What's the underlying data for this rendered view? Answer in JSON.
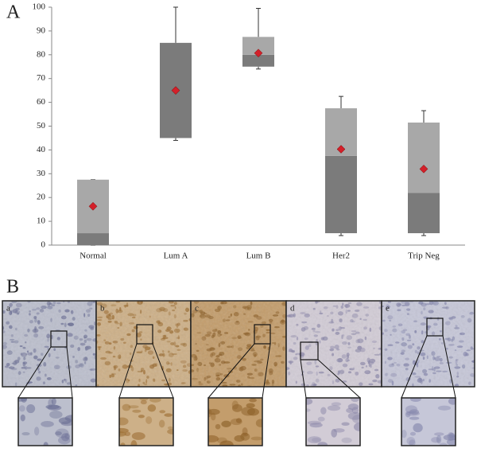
{
  "chart_data": {
    "type": "box",
    "panel_label": "A",
    "categories": [
      "Normal",
      "Lum A",
      "Lum B",
      "Her2",
      "Trip Neg"
    ],
    "min": [
      0,
      44,
      74,
      4,
      4
    ],
    "q1": [
      0,
      45,
      75,
      5,
      5
    ],
    "median": [
      5,
      85,
      80,
      37.5,
      22
    ],
    "q3": [
      27.5,
      85,
      87.5,
      57.5,
      51.5
    ],
    "max": [
      27.5,
      100,
      99.5,
      62.5,
      56.5
    ],
    "mean": [
      16.3,
      65,
      80.7,
      40.3,
      32
    ],
    "lower_color": "#7b7b7b",
    "upper_color": "#a8a8a8",
    "mean_color": "#d3202a",
    "ylim": [
      0,
      100
    ],
    "yticks": [
      0,
      10,
      20,
      30,
      40,
      50,
      60,
      70,
      80,
      90,
      100
    ]
  },
  "panel_b": {
    "label": "B",
    "images": [
      "a",
      "b",
      "c",
      "d",
      "e"
    ]
  }
}
